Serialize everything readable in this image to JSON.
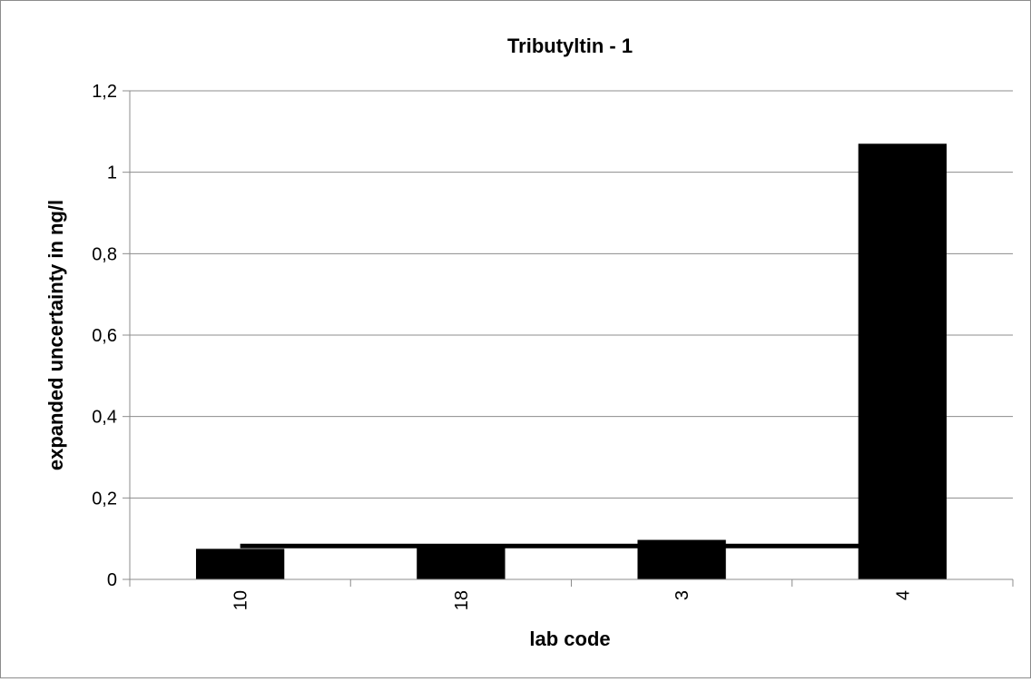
{
  "chart_data": {
    "type": "bar",
    "title": "Tributyltin - 1",
    "xlabel": "lab code",
    "ylabel": "expanded uncertainty in ng/l",
    "categories": [
      "10",
      "18",
      "3",
      "4"
    ],
    "series": [
      {
        "values": [
          0.075,
          0.085,
          0.097,
          1.07
        ],
        "color": "#000000"
      }
    ],
    "reference_line": {
      "value": 0.082,
      "color": "#000000"
    },
    "ylim": [
      0,
      1.2
    ],
    "yticks": [
      0,
      0.2,
      0.4,
      0.6,
      0.8,
      1,
      1.2
    ],
    "ytick_labels": [
      "0",
      "0,2",
      "0,4",
      "0,6",
      "0,8",
      "1",
      "1,2"
    ],
    "grid": true,
    "legend": "none",
    "x_tick_rotation": "vertical"
  }
}
